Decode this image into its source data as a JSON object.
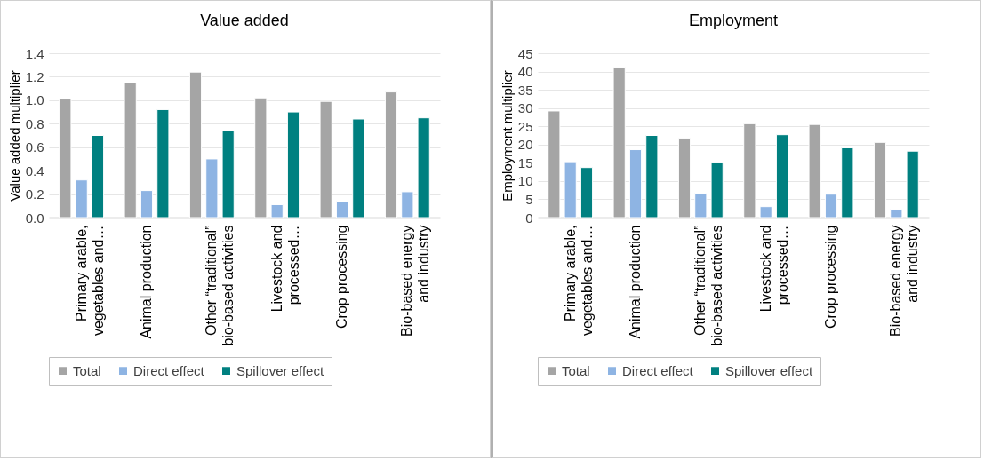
{
  "chart_data": [
    {
      "type": "bar",
      "title": "Value added",
      "ylabel": "Value added multiplier",
      "categories": [
        "Primary arable,\nvegetables and…",
        "Animal production",
        "Other “traditional”\nbio-based activities",
        "Livestock and\nprocessed…",
        "Crop processing",
        "Bio-based energy\nand industry"
      ],
      "series": [
        {
          "name": "Total",
          "color": "#a5a5a5",
          "values": [
            1.01,
            1.15,
            1.24,
            1.02,
            0.99,
            1.07
          ]
        },
        {
          "name": "Direct effect",
          "color": "#8eb4e3",
          "values": [
            0.32,
            0.23,
            0.5,
            0.11,
            0.14,
            0.22
          ]
        },
        {
          "name": "Spillover effect",
          "color": "#008080",
          "values": [
            0.7,
            0.92,
            0.74,
            0.9,
            0.84,
            0.85
          ]
        }
      ],
      "ylim": [
        0,
        1.4
      ],
      "yticks": [
        {
          "value": 0,
          "label": "0.0"
        },
        {
          "value": 0.2,
          "label": "0.2"
        },
        {
          "value": 0.4,
          "label": "0.4"
        },
        {
          "value": 0.6,
          "label": "0.6"
        },
        {
          "value": 0.8,
          "label": "0.8"
        },
        {
          "value": 1,
          "label": "1.0"
        },
        {
          "value": 1.2,
          "label": "1.2"
        },
        {
          "value": 1.4,
          "label": "1.4"
        }
      ],
      "grid": "y",
      "legend": "bottom"
    },
    {
      "type": "bar",
      "title": "Employment",
      "ylabel": "Employment multiplier",
      "categories": [
        "Primary arable,\nvegetables and…",
        "Animal production",
        "Other “traditional”\nbio-based activities",
        "Livestock and\nprocessed…",
        "Crop processing",
        "Bio-based energy\nand industry"
      ],
      "series": [
        {
          "name": "Total",
          "color": "#a5a5a5",
          "values": [
            29.2,
            41,
            21.8,
            25.7,
            25.5,
            20.6
          ]
        },
        {
          "name": "Direct effect",
          "color": "#8eb4e3",
          "values": [
            15.3,
            18.6,
            6.7,
            3,
            6.4,
            2.3
          ]
        },
        {
          "name": "Spillover effect",
          "color": "#008080",
          "values": [
            13.7,
            22.5,
            15.1,
            22.7,
            19.1,
            18.2
          ]
        }
      ],
      "ylim": [
        0,
        45
      ],
      "yticks": [
        0,
        5,
        10,
        15,
        20,
        25,
        30,
        35,
        40,
        45
      ],
      "grid": "y",
      "legend": "bottom"
    }
  ]
}
